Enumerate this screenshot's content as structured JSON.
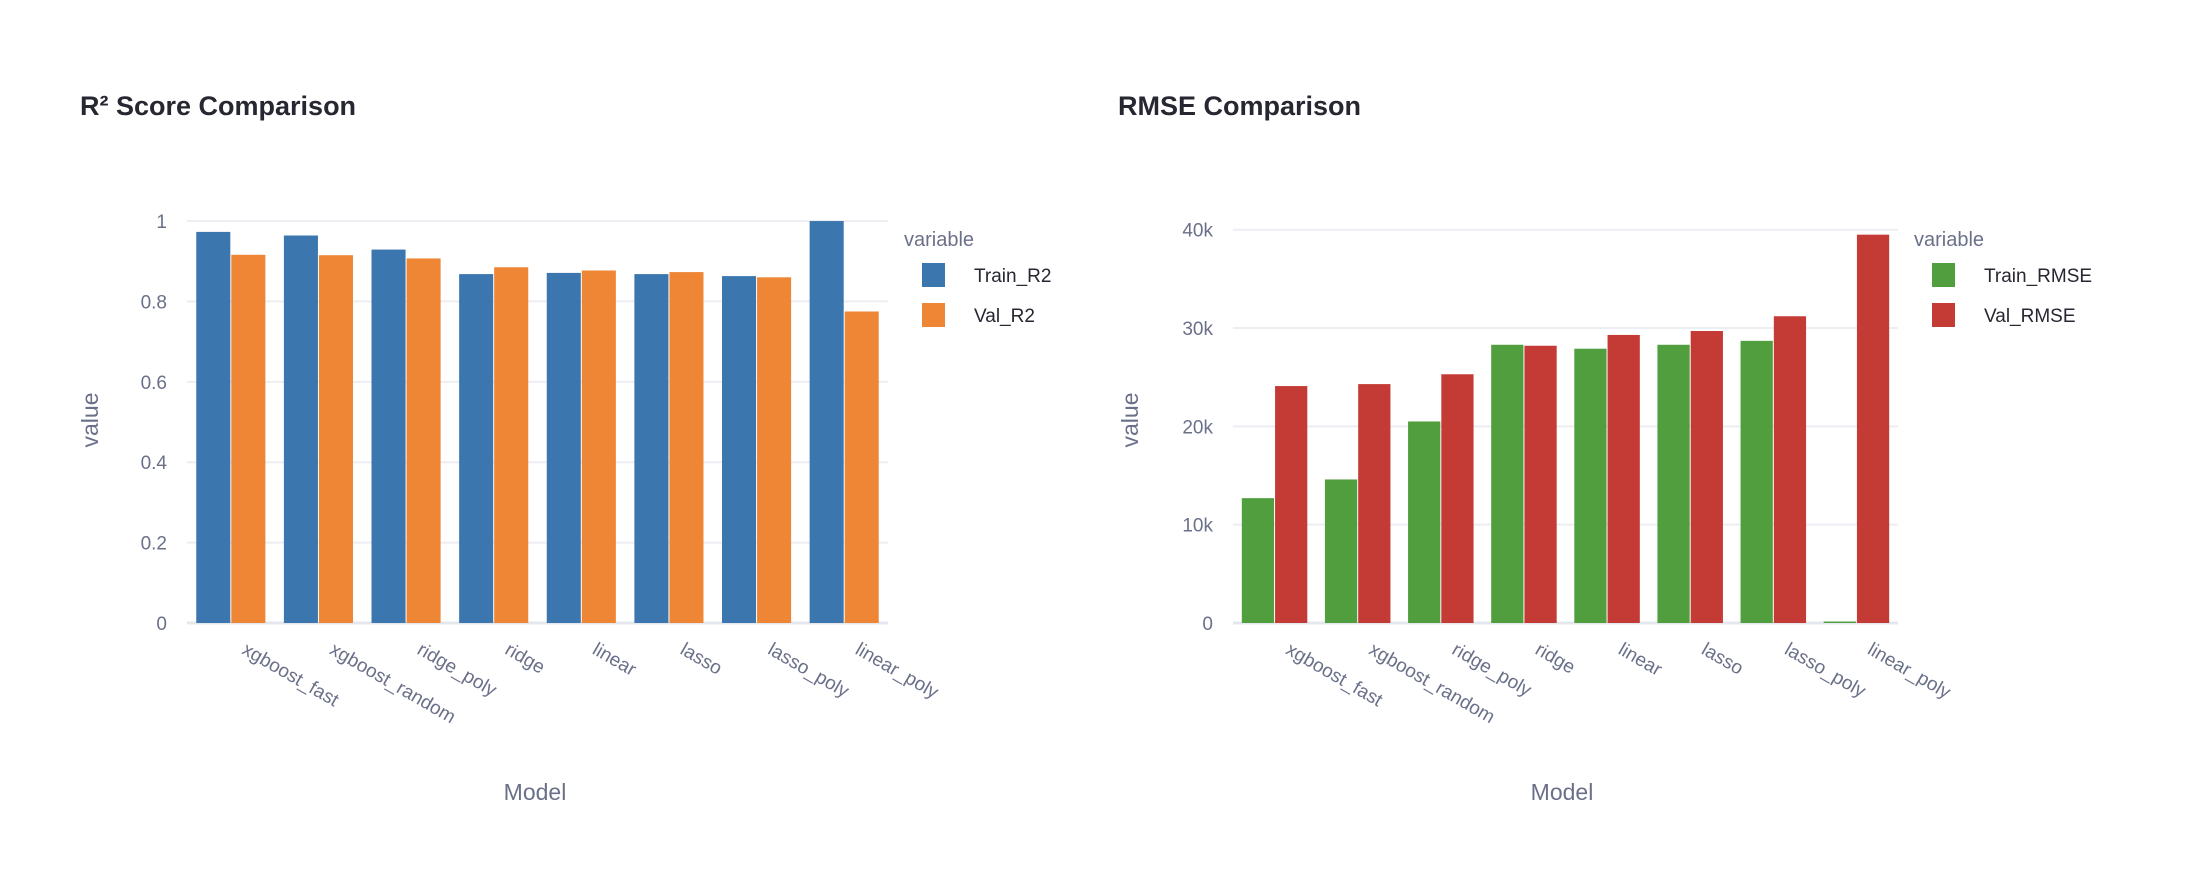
{
  "chart_data": [
    {
      "type": "bar",
      "title": "R² Score Comparison",
      "xlabel": "Model",
      "ylabel": "value",
      "categories": [
        "xgboost_fast",
        "xgboost_random",
        "ridge_poly",
        "ridge",
        "linear",
        "lasso",
        "lasso_poly",
        "linear_poly"
      ],
      "ylim": [
        0,
        1.02
      ],
      "yticks": [
        0,
        0.2,
        0.4,
        0.6,
        0.8,
        1
      ],
      "ytick_labels": [
        "0",
        "0.2",
        "0.4",
        "0.6",
        "0.8",
        "1"
      ],
      "grid": true,
      "legend_title": "variable",
      "legend_position": "right",
      "series": [
        {
          "name": "Train_R2",
          "color": "#3b76ae",
          "values": [
            0.973,
            0.964,
            0.929,
            0.868,
            0.871,
            0.868,
            0.863,
            1.0
          ]
        },
        {
          "name": "Val_R2",
          "color": "#ef8636",
          "values": [
            0.916,
            0.915,
            0.907,
            0.885,
            0.877,
            0.873,
            0.86,
            0.775
          ]
        }
      ]
    },
    {
      "type": "bar",
      "title": "RMSE Comparison",
      "xlabel": "Model",
      "ylabel": "value",
      "categories": [
        "xgboost_fast",
        "xgboost_random",
        "ridge_poly",
        "ridge",
        "linear",
        "lasso",
        "lasso_poly",
        "linear_poly"
      ],
      "ylim": [
        0,
        41500
      ],
      "yticks": [
        0,
        10000,
        20000,
        30000,
        40000
      ],
      "ytick_labels": [
        "0",
        "10k",
        "20k",
        "30k",
        "40k"
      ],
      "grid": true,
      "legend_title": "variable",
      "legend_position": "right",
      "series": [
        {
          "name": "Train_RMSE",
          "color": "#519e3e",
          "values": [
            12700,
            14600,
            20500,
            28300,
            27900,
            28300,
            28700,
            150
          ]
        },
        {
          "name": "Val_RMSE",
          "color": "#c43a35",
          "values": [
            24100,
            24300,
            25300,
            28200,
            29300,
            29700,
            31200,
            39500
          ]
        }
      ]
    }
  ]
}
